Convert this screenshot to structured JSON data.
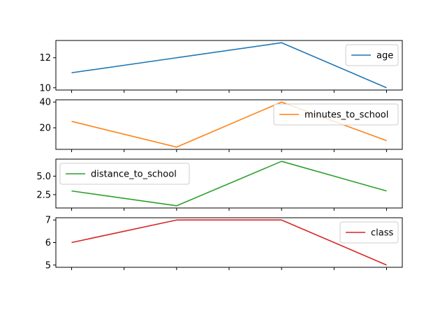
{
  "chart_data": [
    {
      "type": "line",
      "x": [
        0,
        1,
        2,
        3
      ],
      "series": [
        {
          "name": "age",
          "values": [
            11,
            12,
            13,
            10
          ],
          "color": "#1f77b4"
        }
      ],
      "ylim": [
        9.85,
        13.15
      ],
      "yticks": [
        10,
        12
      ],
      "ytick_labels": [
        "10",
        "12"
      ],
      "legend_position": "upper right"
    },
    {
      "type": "line",
      "x": [
        0,
        1,
        2,
        3
      ],
      "series": [
        {
          "name": "minutes_to_school",
          "values": [
            25,
            5,
            40,
            10
          ],
          "color": "#ff7f0e"
        }
      ],
      "ylim": [
        3.25,
        41.75
      ],
      "yticks": [
        20,
        40
      ],
      "ytick_labels": [
        "20",
        "40"
      ],
      "legend_position": "upper right"
    },
    {
      "type": "line",
      "x": [
        0,
        1,
        2,
        3
      ],
      "series": [
        {
          "name": "distance_to_school",
          "values": [
            3,
            1,
            7,
            3
          ],
          "color": "#2ca02c"
        }
      ],
      "ylim": [
        0.7,
        7.3
      ],
      "yticks": [
        2.5,
        5.0
      ],
      "ytick_labels": [
        "2.5",
        "5.0"
      ],
      "legend_position": "upper left"
    },
    {
      "type": "line",
      "x": [
        0,
        1,
        2,
        3
      ],
      "series": [
        {
          "name": "class",
          "values": [
            6,
            7,
            7,
            5
          ],
          "color": "#d62728"
        }
      ],
      "ylim": [
        4.9,
        7.1
      ],
      "yticks": [
        5,
        6,
        7
      ],
      "ytick_labels": [
        "5",
        "6",
        "7"
      ],
      "legend_position": "upper right"
    }
  ],
  "shared_xlim": [
    -0.15,
    3.15
  ],
  "shared_xticks": [
    0,
    0.5,
    1,
    1.5,
    2,
    2.5,
    3
  ]
}
